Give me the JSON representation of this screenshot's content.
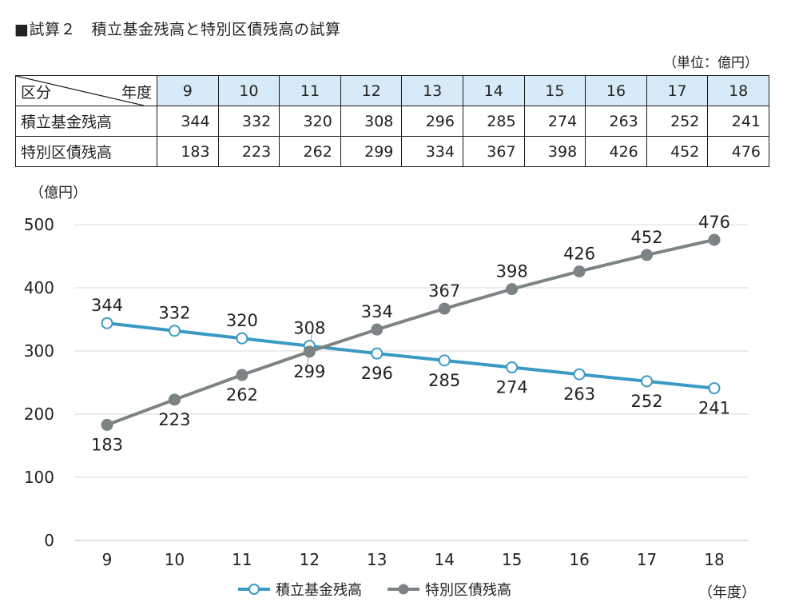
{
  "title": "■試算２　積立基金残高と特別区債残高の試算",
  "table": {
    "unit": "（単位：億円）",
    "corner_left": "区分",
    "corner_right": "年度",
    "years": [
      "9",
      "10",
      "11",
      "12",
      "13",
      "14",
      "15",
      "16",
      "17",
      "18"
    ],
    "rows": [
      {
        "label": "積立基金残高",
        "values": [
          "344",
          "332",
          "320",
          "308",
          "296",
          "285",
          "274",
          "263",
          "252",
          "241"
        ]
      },
      {
        "label": "特別区債残高",
        "values": [
          "183",
          "223",
          "262",
          "299",
          "334",
          "367",
          "398",
          "426",
          "452",
          "476"
        ]
      }
    ]
  },
  "chart_data": {
    "type": "line",
    "x": [
      "9",
      "10",
      "11",
      "12",
      "13",
      "14",
      "15",
      "16",
      "17",
      "18"
    ],
    "ylabel": "（億円）",
    "xlabel": "（年度）",
    "ylim": [
      0,
      500
    ],
    "yticks": [
      "0",
      "100",
      "200",
      "300",
      "400",
      "500"
    ],
    "grid": true,
    "legend_position": "bottom",
    "series": [
      {
        "name": "積立基金残高",
        "color": "#3a9ac4",
        "marker": "open-circle",
        "values": [
          344,
          332,
          320,
          308,
          296,
          285,
          274,
          263,
          252,
          241
        ],
        "labels": [
          "344",
          "332",
          "320",
          "308",
          "296",
          "285",
          "274",
          "263",
          "252",
          "241"
        ]
      },
      {
        "name": "特別区債残高",
        "color": "#7b8384",
        "marker": "filled-circle",
        "values": [
          183,
          223,
          262,
          299,
          334,
          367,
          398,
          426,
          452,
          476
        ],
        "labels": [
          "183",
          "223",
          "262",
          "299",
          "334",
          "367",
          "398",
          "426",
          "452",
          "476"
        ]
      }
    ]
  }
}
